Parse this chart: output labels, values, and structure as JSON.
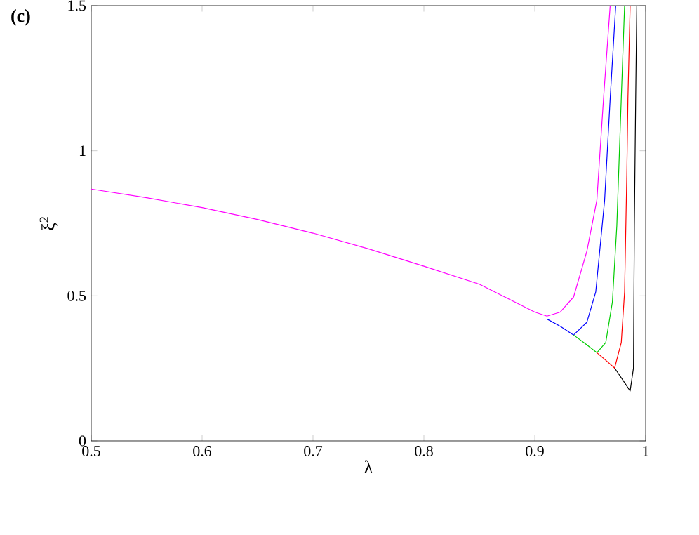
{
  "chart_data": {
    "type": "line",
    "xlabel": "λ",
    "ylabel": "ξ$^{2}$",
    "annotations": [
      "(c)"
    ],
    "xlim": [
      0.5,
      1
    ],
    "ylim": [
      0,
      1.5
    ],
    "xticks": [
      0.5,
      0.6,
      0.7,
      0.8,
      0.9,
      {
        "value": 1,
        "label": "1"
      }
    ],
    "yticks": [
      0,
      0.5,
      1,
      1.5
    ],
    "grid": false,
    "marker": "none",
    "line_style": "solid",
    "series": [
      {
        "color": "#ff00ff",
        "x": [
          0.5,
          0.55,
          0.6,
          0.65,
          0.7,
          0.75,
          0.8,
          0.85,
          0.9,
          0.911,
          0.923,
          0.935,
          0.947,
          0.956,
          0.962,
          0.968
        ],
        "values": [
          0.868,
          0.838,
          0.804,
          0.763,
          0.716,
          0.662,
          0.602,
          0.54,
          0.444,
          0.43,
          0.444,
          0.496,
          0.654,
          0.83,
          1.18,
          1.5
        ]
      },
      {
        "color": "#0000ff",
        "x": [
          0.911,
          0.923,
          0.935,
          0.947,
          0.955,
          0.963,
          0.968,
          0.973
        ],
        "values": [
          0.42,
          0.395,
          0.365,
          0.409,
          0.514,
          0.83,
          1.18,
          1.5
        ]
      },
      {
        "color": "#00cc00",
        "x": [
          0.935,
          0.946,
          0.956,
          0.964,
          0.97,
          0.974,
          0.978,
          0.981
        ],
        "values": [
          0.365,
          0.334,
          0.304,
          0.339,
          0.479,
          0.742,
          1.18,
          1.5
        ]
      },
      {
        "color": "#ff0000",
        "x": [
          0.956,
          0.964,
          0.972,
          0.978,
          0.981,
          0.983,
          0.984,
          0.986
        ],
        "values": [
          0.304,
          0.278,
          0.251,
          0.339,
          0.514,
          0.918,
          1.18,
          1.5
        ]
      },
      {
        "color": "#000000",
        "x": [
          0.972,
          0.979,
          0.986,
          0.989,
          0.9898,
          0.991,
          0.992
        ],
        "values": [
          0.251,
          0.212,
          0.172,
          0.251,
          0.742,
          1.18,
          1.5
        ]
      }
    ]
  }
}
